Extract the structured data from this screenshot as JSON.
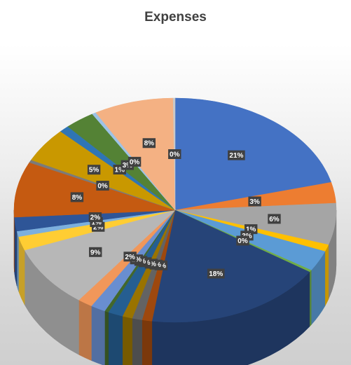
{
  "chart_data": {
    "type": "pie",
    "title": "Expenses",
    "style": "3d-pie",
    "slices": [
      {
        "label": "21%",
        "value": 21,
        "color": "#4472C4"
      },
      {
        "label": "3%",
        "value": 3,
        "color": "#ED7D31"
      },
      {
        "label": "6%",
        "value": 6,
        "color": "#A5A5A5"
      },
      {
        "label": "1%",
        "value": 1,
        "color": "#FFC000"
      },
      {
        "label": "3%",
        "value": 3,
        "color": "#5B9BD5"
      },
      {
        "label": "0%",
        "value": 0.3,
        "color": "#70AD47"
      },
      {
        "label": "18%",
        "value": 18,
        "color": "#264478"
      },
      {
        "label": "1%",
        "value": 1,
        "color": "#9E480E"
      },
      {
        "label": "1%",
        "value": 1,
        "color": "#636363"
      },
      {
        "label": "1%",
        "value": 1,
        "color": "#997300"
      },
      {
        "label": "2%",
        "value": 1.5,
        "color": "#255E91"
      },
      {
        "label": "0%",
        "value": 0.4,
        "color": "#43682B"
      },
      {
        "label": "2%",
        "value": 1.5,
        "color": "#698ED0"
      },
      {
        "label": "2%",
        "value": 1.5,
        "color": "#F1975A"
      },
      {
        "label": "9%",
        "value": 9,
        "color": "#B7B7B7"
      },
      {
        "label": "2%",
        "value": 2,
        "color": "#FFCD33"
      },
      {
        "label": "1%",
        "value": 0.8,
        "color": "#7CAFDD"
      },
      {
        "label": "2%",
        "value": 2,
        "color": "#2E5597"
      },
      {
        "label": "8%",
        "value": 8,
        "color": "#C55A11"
      },
      {
        "label": "0%",
        "value": 0.4,
        "color": "#7B7B7B"
      },
      {
        "label": "5%",
        "value": 5,
        "color": "#C99800"
      },
      {
        "label": "1%",
        "value": 1,
        "color": "#2F75B5"
      },
      {
        "label": "3%",
        "value": 3,
        "color": "#548235"
      },
      {
        "label": "0%",
        "value": 0.4,
        "color": "#9DC3E6"
      },
      {
        "label": "8%",
        "value": 8,
        "color": "#F4B183"
      },
      {
        "label": "0%",
        "value": 0.2,
        "color": "#C9C9C9"
      }
    ]
  }
}
